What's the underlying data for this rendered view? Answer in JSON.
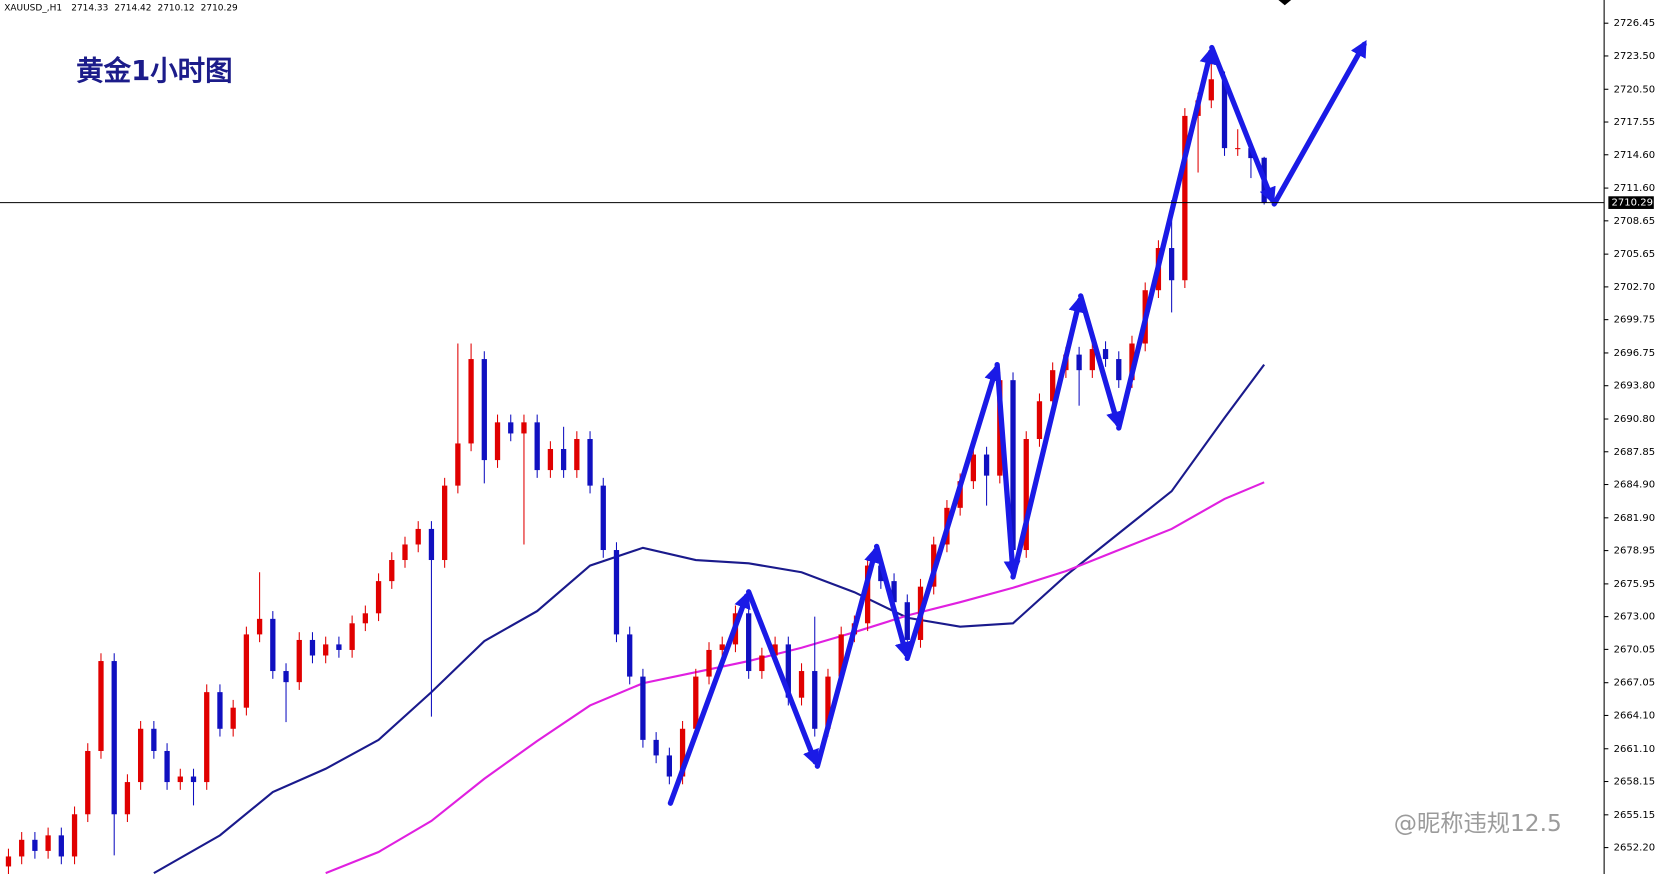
{
  "chart_data": {
    "type": "candlestick",
    "title": "黄金1小时图",
    "symbol": "XAUUSD_,H1",
    "watermark": "@昵称违规12.5",
    "up_color": "#e00000",
    "down_color": "#1010c0",
    "open": [
      2650.5,
      2651.4,
      2652.9,
      2651.9,
      2653.3,
      2651.4,
      2655.2,
      2660.9,
      2669.0,
      2655.2,
      2658.1,
      2662.9,
      2660.9,
      2658.1,
      2658.6,
      2658.1,
      2666.2,
      2662.9,
      2664.8,
      2671.4,
      2672.8,
      2668.1,
      2667.1,
      2670.9,
      2669.5,
      2670.5,
      2670.0,
      2672.4,
      2673.3,
      2676.2,
      2678.1,
      2679.5,
      2680.9,
      2678.1,
      2684.8,
      2688.6,
      2696.2,
      2687.1,
      2690.5,
      2689.5,
      2690.5,
      2686.2,
      2688.1,
      2686.2,
      2689.0,
      2684.8,
      2679.0,
      2671.4,
      2667.6,
      2661.9,
      2660.5,
      2658.6,
      2662.9,
      2667.6,
      2670.0,
      2670.5,
      2673.3,
      2668.1,
      2669.5,
      2670.5,
      2665.7,
      2668.1,
      2662.9,
      2667.6,
      2671.4,
      2672.4,
      2677.6,
      2676.2,
      2674.3,
      2670.9,
      2675.7,
      2679.5,
      2682.8,
      2685.2,
      2687.6,
      2685.7,
      2694.3,
      2679.0,
      2689.0,
      2692.4,
      2695.2,
      2696.6,
      2695.2,
      2697.1,
      2696.2,
      2694.3,
      2697.6,
      2702.4,
      2706.2,
      2703.3,
      2718.1,
      2719.5,
      2721.4,
      2715.2,
      2715.2,
      2714.33
    ],
    "high": [
      2652.1,
      2653.6,
      2653.6,
      2654.0,
      2654.0,
      2655.9,
      2661.6,
      2669.7,
      2669.7,
      2658.8,
      2663.6,
      2663.6,
      2661.6,
      2659.3,
      2659.3,
      2666.9,
      2666.9,
      2665.5,
      2672.1,
      2677.0,
      2673.5,
      2668.8,
      2671.6,
      2671.6,
      2671.2,
      2671.2,
      2673.1,
      2674.0,
      2676.9,
      2678.8,
      2680.2,
      2681.6,
      2681.6,
      2685.5,
      2697.6,
      2697.6,
      2696.9,
      2691.2,
      2691.2,
      2691.2,
      2691.2,
      2688.8,
      2690.1,
      2689.7,
      2689.7,
      2685.5,
      2679.7,
      2672.1,
      2668.3,
      2662.6,
      2661.2,
      2663.6,
      2668.3,
      2670.7,
      2671.2,
      2674.0,
      2674.0,
      2670.2,
      2671.2,
      2671.2,
      2668.8,
      2673.0,
      2668.3,
      2672.1,
      2673.1,
      2678.3,
      2678.3,
      2676.9,
      2675.0,
      2676.4,
      2680.2,
      2683.5,
      2685.9,
      2688.3,
      2688.3,
      2695.0,
      2695.0,
      2689.7,
      2693.1,
      2695.9,
      2697.3,
      2697.3,
      2697.8,
      2697.8,
      2696.9,
      2698.3,
      2703.1,
      2706.9,
      2710.5,
      2718.8,
      2720.2,
      2723.6,
      2722.1,
      2716.9,
      2715.9,
      2714.42
    ],
    "low": [
      2649.8,
      2650.7,
      2651.2,
      2651.2,
      2650.7,
      2650.7,
      2654.5,
      2660.2,
      2651.5,
      2654.5,
      2657.4,
      2660.2,
      2657.4,
      2657.4,
      2656.0,
      2657.4,
      2662.2,
      2662.2,
      2664.1,
      2670.7,
      2667.4,
      2663.5,
      2666.4,
      2668.8,
      2668.8,
      2669.3,
      2669.3,
      2671.7,
      2672.6,
      2675.5,
      2677.4,
      2678.8,
      2664.0,
      2677.4,
      2684.1,
      2687.9,
      2685.0,
      2686.4,
      2688.8,
      2679.5,
      2685.5,
      2685.5,
      2685.5,
      2685.5,
      2684.1,
      2678.3,
      2670.7,
      2666.9,
      2661.2,
      2659.8,
      2657.9,
      2657.9,
      2662.2,
      2666.9,
      2669.3,
      2669.8,
      2667.4,
      2667.4,
      2668.8,
      2665.0,
      2665.0,
      2662.2,
      2662.2,
      2666.9,
      2670.7,
      2671.7,
      2675.5,
      2673.6,
      2670.2,
      2670.2,
      2675.0,
      2678.8,
      2682.1,
      2684.5,
      2683.0,
      2685.0,
      2678.3,
      2678.3,
      2688.3,
      2691.7,
      2694.5,
      2692.0,
      2694.5,
      2695.5,
      2693.6,
      2693.6,
      2696.9,
      2701.7,
      2700.4,
      2702.6,
      2713.0,
      2718.8,
      2714.5,
      2714.5,
      2712.5,
      2710.12
    ],
    "close": [
      2651.4,
      2652.9,
      2651.9,
      2653.3,
      2651.4,
      2655.2,
      2660.9,
      2669.0,
      2655.2,
      2658.1,
      2662.9,
      2660.9,
      2658.1,
      2658.6,
      2658.1,
      2666.2,
      2662.9,
      2664.8,
      2671.4,
      2672.8,
      2668.1,
      2667.1,
      2670.9,
      2669.5,
      2670.5,
      2670.0,
      2672.4,
      2673.3,
      2676.2,
      2678.1,
      2679.5,
      2680.9,
      2678.1,
      2684.8,
      2688.6,
      2696.2,
      2687.1,
      2690.5,
      2689.5,
      2690.5,
      2686.2,
      2688.1,
      2686.2,
      2689.0,
      2684.8,
      2679.0,
      2671.4,
      2667.6,
      2661.9,
      2660.5,
      2658.6,
      2662.9,
      2667.6,
      2670.0,
      2670.5,
      2673.3,
      2668.1,
      2669.5,
      2670.5,
      2665.7,
      2668.1,
      2662.9,
      2667.6,
      2671.4,
      2672.4,
      2677.6,
      2676.2,
      2674.3,
      2670.9,
      2675.7,
      2679.5,
      2682.8,
      2685.2,
      2687.6,
      2685.7,
      2694.3,
      2679.0,
      2689.0,
      2692.4,
      2695.2,
      2696.6,
      2695.2,
      2697.1,
      2696.2,
      2694.3,
      2697.6,
      2702.4,
      2706.2,
      2703.3,
      2718.1,
      2719.5,
      2721.4,
      2715.2,
      2715.2,
      2714.3,
      2710.29
    ],
    "series": [
      {
        "color": "#1a1a8c",
        "x": [
          11,
          16,
          20,
          24,
          28,
          32,
          36,
          40,
          44,
          48,
          52,
          56,
          60,
          64,
          68,
          72,
          76,
          80,
          84,
          88,
          92,
          95
        ],
        "values": [
          2649.9,
          2653.3,
          2657.2,
          2659.3,
          2661.9,
          2666.2,
          2670.8,
          2673.5,
          2677.6,
          2679.2,
          2678.1,
          2677.8,
          2677.0,
          2675.2,
          2672.9,
          2672.1,
          2672.4,
          2676.7,
          2680.5,
          2684.3,
          2690.9,
          2695.7
        ]
      },
      {
        "color": "#e020e0",
        "x": [
          24,
          28,
          32,
          36,
          40,
          44,
          48,
          52,
          56,
          60,
          64,
          68,
          72,
          76,
          80,
          84,
          88,
          92,
          95
        ],
        "values": [
          2649.9,
          2651.8,
          2654.6,
          2658.4,
          2661.8,
          2665.0,
          2667.0,
          2668.0,
          2669.0,
          2670.2,
          2671.6,
          2673.1,
          2674.3,
          2675.6,
          2677.1,
          2679.0,
          2680.9,
          2683.6,
          2685.1
        ]
      }
    ],
    "ylim": [
      2649.82,
      2728.54
    ],
    "yticks": [
      {
        "value": 2726.45,
        "label": "2726.45"
      },
      {
        "value": 2723.5,
        "label": "2723.50"
      },
      {
        "value": 2720.5,
        "label": "2720.50"
      },
      {
        "value": 2717.55,
        "label": "2717.55"
      },
      {
        "value": 2714.6,
        "label": "2714.60"
      },
      {
        "value": 2711.6,
        "label": "2711.60"
      },
      {
        "value": 2708.65,
        "label": "2708.65"
      },
      {
        "value": 2705.65,
        "label": "2705.65"
      },
      {
        "value": 2702.7,
        "label": "2702.70"
      },
      {
        "value": 2699.75,
        "label": "2699.75"
      },
      {
        "value": 2696.75,
        "label": "2696.75"
      },
      {
        "value": 2693.8,
        "label": "2693.80"
      },
      {
        "value": 2690.8,
        "label": "2690.80"
      },
      {
        "value": 2687.85,
        "label": "2687.85"
      },
      {
        "value": 2684.9,
        "label": "2684.90"
      },
      {
        "value": 2681.9,
        "label": "2681.90"
      },
      {
        "value": 2678.95,
        "label": "2678.95"
      },
      {
        "value": 2675.95,
        "label": "2675.95"
      },
      {
        "value": 2673.0,
        "label": "2673.00"
      },
      {
        "value": 2670.05,
        "label": "2670.05"
      },
      {
        "value": 2667.05,
        "label": "2667.05"
      },
      {
        "value": 2664.1,
        "label": "2664.10"
      },
      {
        "value": 2661.1,
        "label": "2661.10"
      },
      {
        "value": 2658.15,
        "label": "2658.15"
      },
      {
        "value": 2655.15,
        "label": "2655.15"
      },
      {
        "value": 2652.2,
        "label": "2652.20"
      }
    ]
  }
}
